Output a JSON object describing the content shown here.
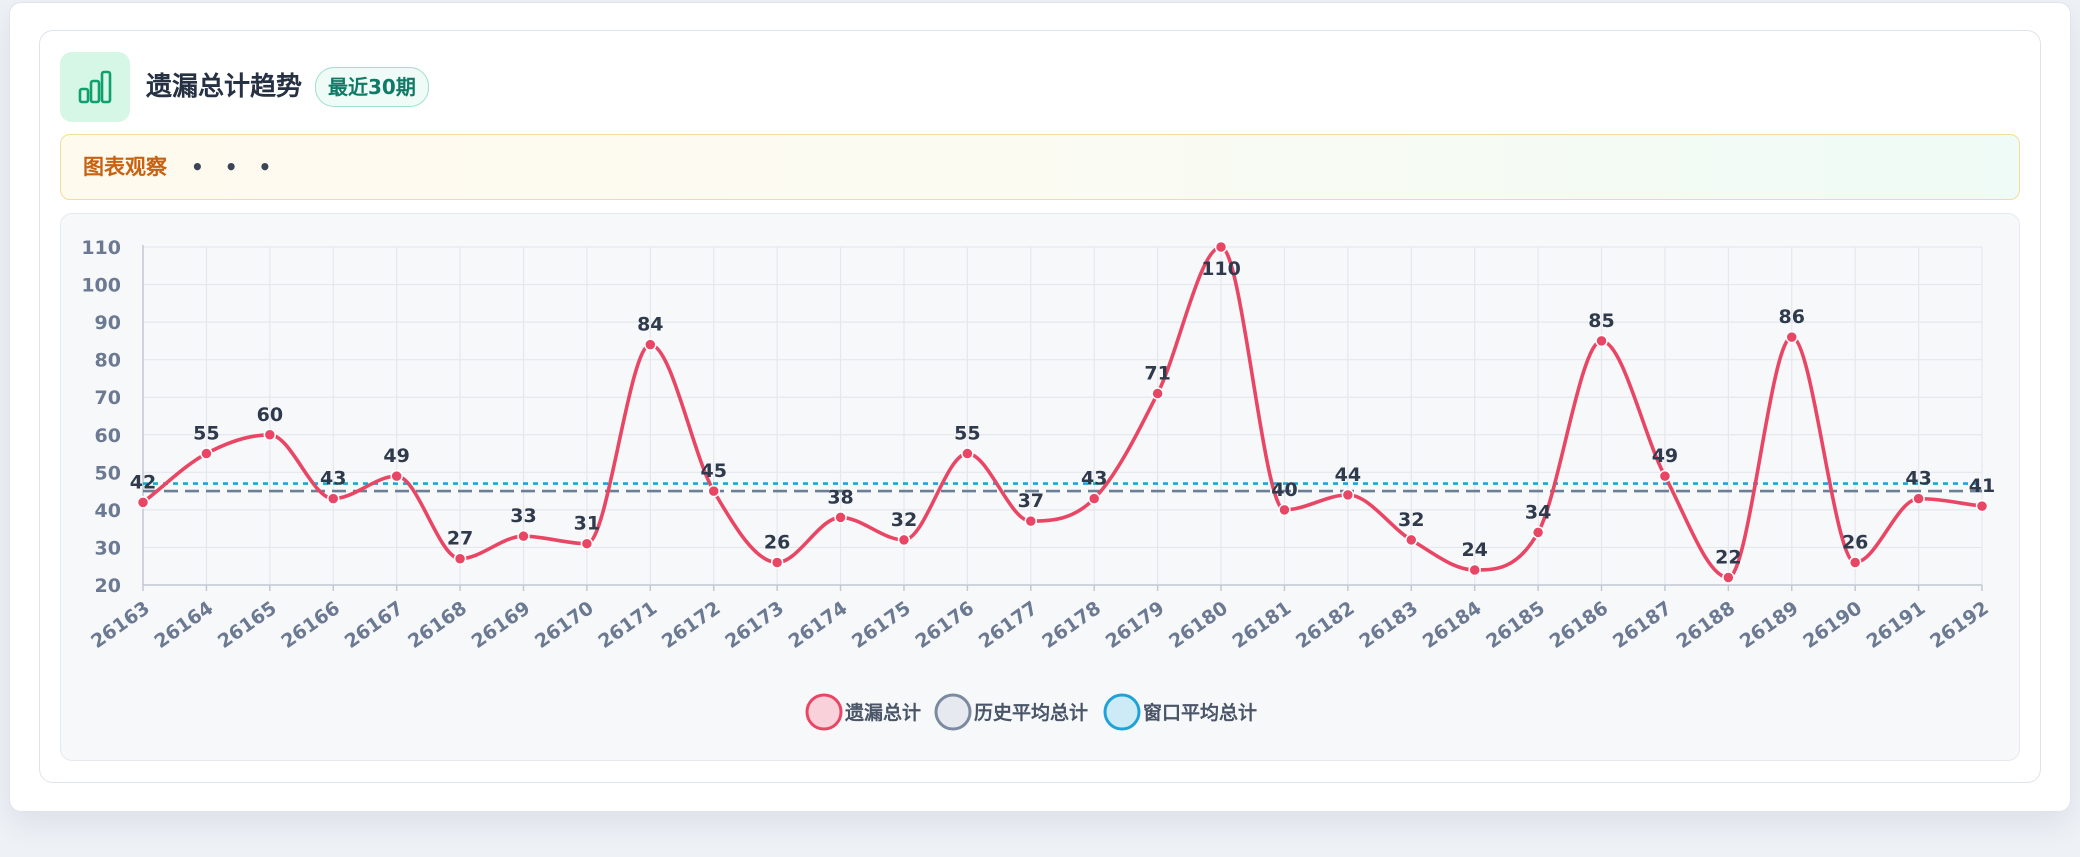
{
  "header": {
    "title": "遗漏总计趋势",
    "badge": "最近30期",
    "icon": "bar-chart-icon",
    "accent": "#10b07a"
  },
  "observation": {
    "label": "图表观察",
    "dots": "• • •"
  },
  "chart_data": {
    "type": "line",
    "smooth": true,
    "categories": [
      "26163",
      "26164",
      "26165",
      "26166",
      "26167",
      "26168",
      "26169",
      "26170",
      "26171",
      "26172",
      "26173",
      "26174",
      "26175",
      "26176",
      "26177",
      "26178",
      "26179",
      "26180",
      "26181",
      "26182",
      "26183",
      "26184",
      "26185",
      "26186",
      "26187",
      "26188",
      "26189",
      "26190",
      "26191",
      "26192"
    ],
    "series": [
      {
        "name": "遗漏总计",
        "color": "#e84664",
        "values": [
          42,
          55,
          60,
          43,
          49,
          27,
          33,
          31,
          84,
          45,
          26,
          38,
          32,
          55,
          37,
          43,
          71,
          110,
          40,
          44,
          32,
          24,
          34,
          85,
          49,
          22,
          86,
          26,
          43,
          41
        ]
      }
    ],
    "reference_lines": [
      {
        "name": "历史平均总计",
        "color": "#6b7f95",
        "style": "dashed",
        "value": 45
      },
      {
        "name": "窗口平均总计",
        "color": "#1fa3d6",
        "style": "dotted",
        "value": 47
      }
    ],
    "legend": {
      "position": "bottom-center",
      "items": [
        {
          "name": "遗漏总计",
          "stroke": "#e84664",
          "fill": "#f8d1da"
        },
        {
          "name": "历史平均总计",
          "stroke": "#7b8aa0",
          "fill": "#e6eaf0"
        },
        {
          "name": "窗口平均总计",
          "stroke": "#1fa3d6",
          "fill": "#cdebf7"
        }
      ]
    },
    "ylim": [
      20,
      110
    ],
    "yticks": [
      20,
      30,
      40,
      50,
      60,
      70,
      80,
      90,
      100,
      110
    ],
    "grid": true,
    "data_labels": true,
    "xlabel": "",
    "ylabel": ""
  }
}
